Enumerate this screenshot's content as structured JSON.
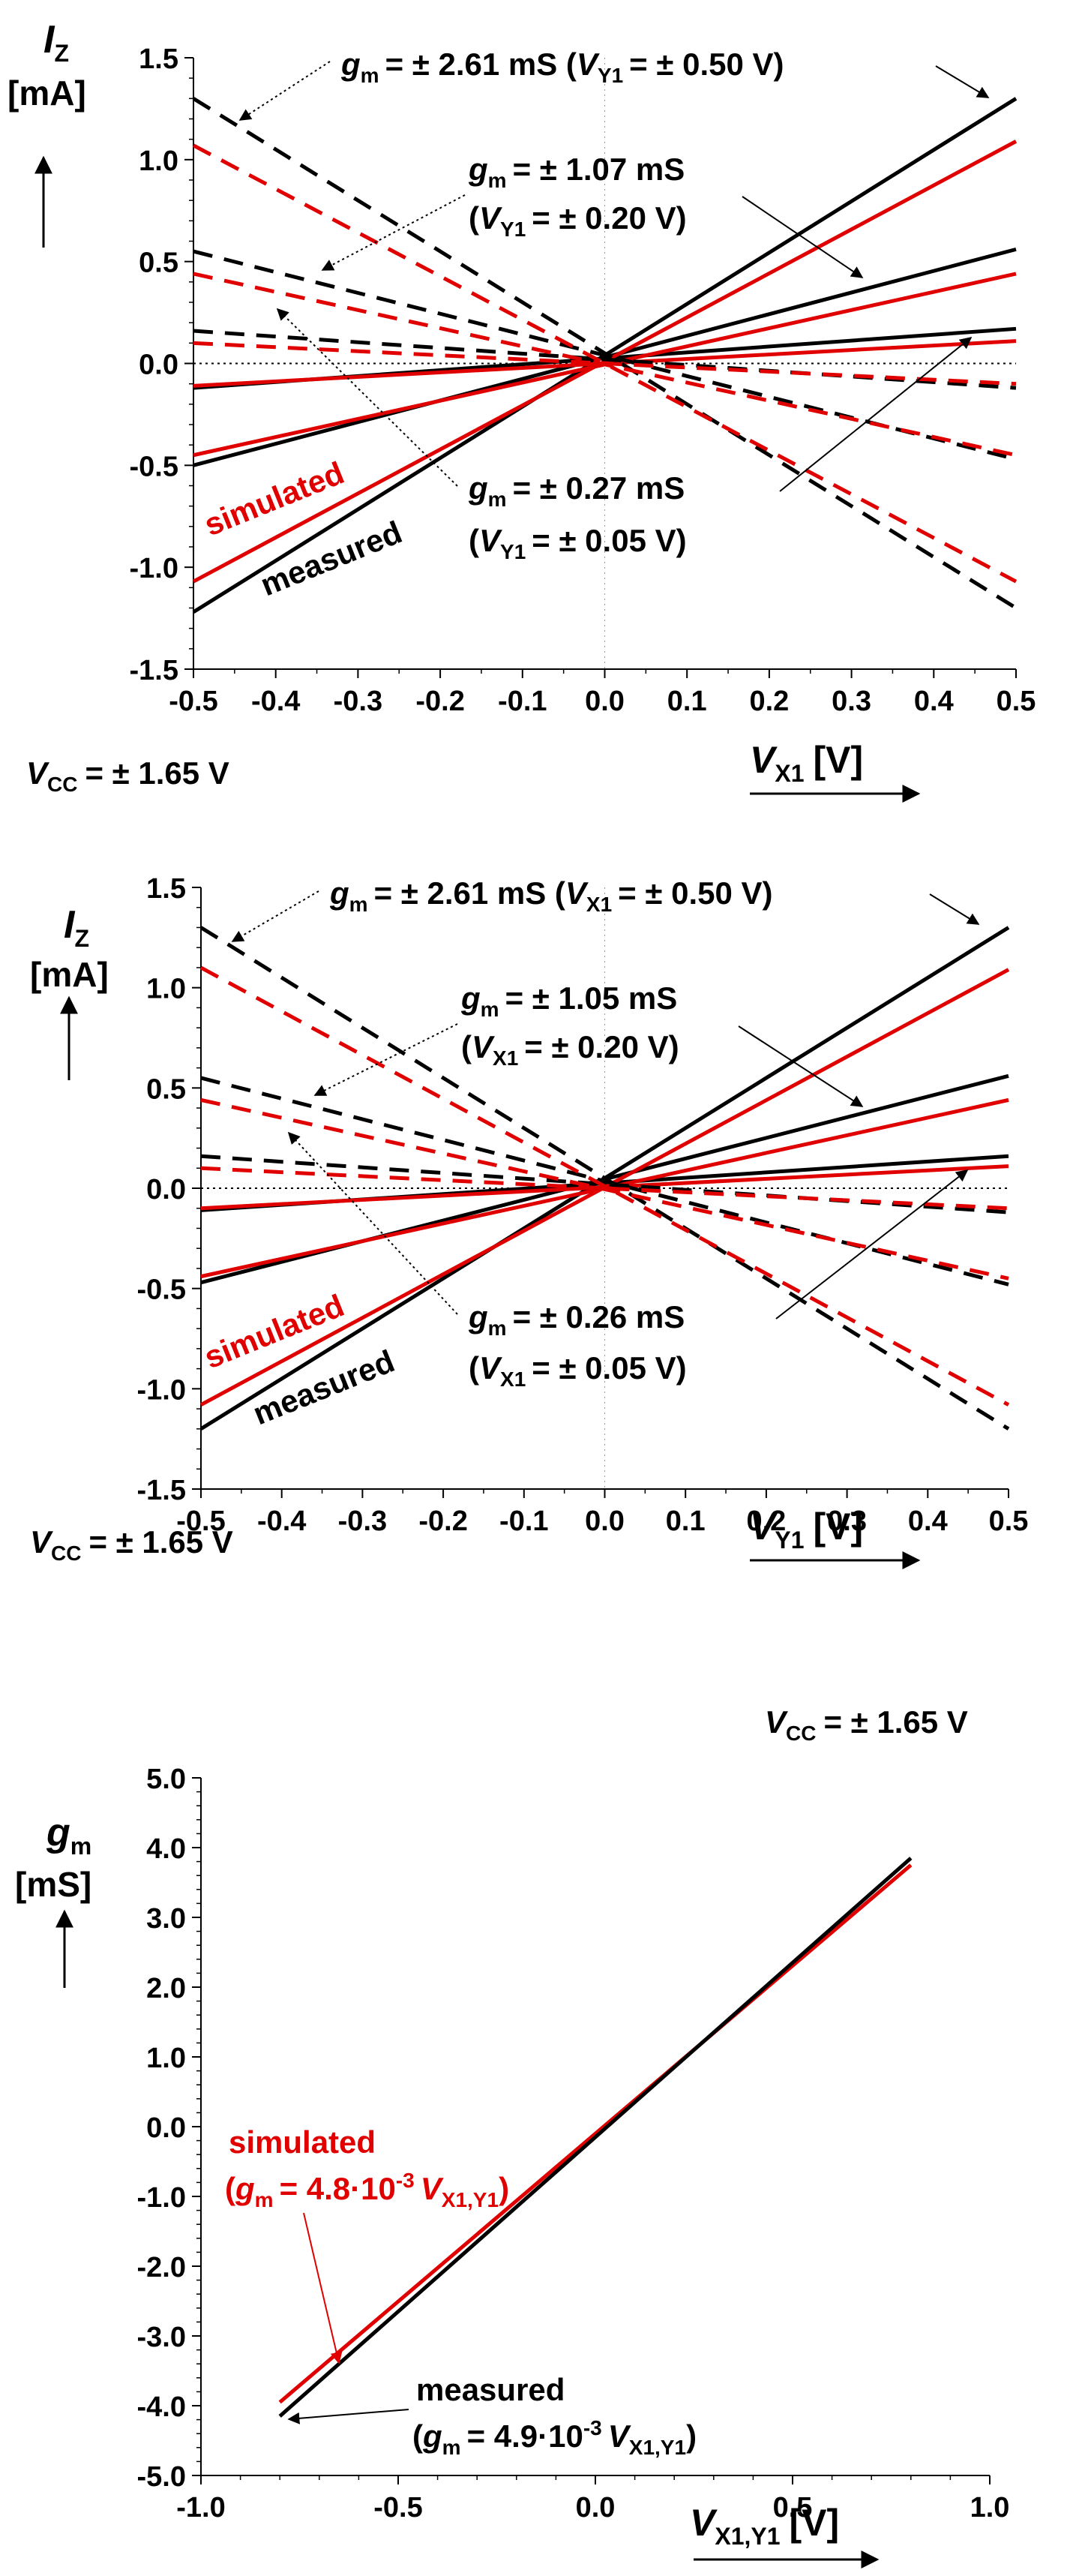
{
  "chart_data": [
    {
      "type": "line",
      "xlim": [
        -0.5,
        0.5
      ],
      "ylim": [
        -1.5,
        1.5
      ],
      "x_ticks": [
        "-0.5",
        "-0.4",
        "-0.3",
        "-0.2",
        "-0.1",
        "0.0",
        "0.1",
        "0.2",
        "0.3",
        "0.4",
        "0.5"
      ],
      "y_ticks": [
        "-1.5",
        "-1.0",
        "-0.5",
        "0.0",
        "0.5",
        "1.0",
        "1.5"
      ],
      "ylabel": {
        "sym": "I",
        "sub": "Z",
        "unit": "[mA]"
      },
      "xlabel": {
        "sym": "V",
        "sub": "X1",
        "unit": "[V]"
      },
      "vcc": {
        "sym": "V",
        "sub": "CC",
        "val": "= ± 1.65 V"
      },
      "legend": {
        "simulated": "simulated",
        "measured": "measured"
      },
      "annotations": [
        {
          "line1": "g",
          "line1_sub": "m",
          "line1_val": "= ± 2.61 mS (",
          "line1_sym2": "V",
          "line1_sub2": "Y1",
          "line1_end": "= ± 0.50 V)"
        },
        {
          "line1": "g",
          "line1_sub": "m",
          "line1_val": "= ± 1.07 mS",
          "line2_open": "(",
          "line2_sym": "V",
          "line2_sub": "Y1",
          "line2_end": "= ± 0.20 V)"
        },
        {
          "line1": "g",
          "line1_sub": "m",
          "line1_val": "= ± 0.27 mS",
          "line2_open": "(",
          "line2_sym": "V",
          "line2_sub": "Y1",
          "line2_end": "= ± 0.05 V)"
        }
      ],
      "series": [
        {
          "kind": "measured",
          "dash": false,
          "x": [
            -0.5,
            0.5
          ],
          "y": [
            -1.22,
            1.3
          ]
        },
        {
          "kind": "measured",
          "dash": false,
          "x": [
            -0.5,
            0.5
          ],
          "y": [
            -0.5,
            0.56
          ]
        },
        {
          "kind": "measured",
          "dash": false,
          "x": [
            -0.5,
            0.5
          ],
          "y": [
            -0.12,
            0.17
          ]
        },
        {
          "kind": "simulated",
          "dash": false,
          "x": [
            -0.5,
            0.5
          ],
          "y": [
            -1.07,
            1.09
          ]
        },
        {
          "kind": "simulated",
          "dash": false,
          "x": [
            -0.5,
            0.5
          ],
          "y": [
            -0.45,
            0.44
          ]
        },
        {
          "kind": "simulated",
          "dash": false,
          "x": [
            -0.5,
            0.5
          ],
          "y": [
            -0.11,
            0.11
          ]
        },
        {
          "kind": "measured",
          "dash": true,
          "x": [
            -0.5,
            0.5
          ],
          "y": [
            1.3,
            -1.2
          ]
        },
        {
          "kind": "measured",
          "dash": true,
          "x": [
            -0.5,
            0.5
          ],
          "y": [
            0.55,
            -0.47
          ]
        },
        {
          "kind": "measured",
          "dash": true,
          "x": [
            -0.5,
            0.5
          ],
          "y": [
            0.16,
            -0.12
          ]
        },
        {
          "kind": "simulated",
          "dash": true,
          "x": [
            -0.5,
            0.5
          ],
          "y": [
            1.07,
            -1.07
          ]
        },
        {
          "kind": "simulated",
          "dash": true,
          "x": [
            -0.5,
            0.5
          ],
          "y": [
            0.44,
            -0.45
          ]
        },
        {
          "kind": "simulated",
          "dash": true,
          "x": [
            -0.5,
            0.5
          ],
          "y": [
            0.1,
            -0.1
          ]
        }
      ]
    },
    {
      "type": "line",
      "xlim": [
        -0.5,
        0.5
      ],
      "ylim": [
        -1.5,
        1.5
      ],
      "x_ticks": [
        "-0.5",
        "-0.4",
        "-0.3",
        "-0.2",
        "-0.1",
        "0.0",
        "0.1",
        "0.2",
        "0.3",
        "0.4",
        "0.5"
      ],
      "y_ticks": [
        "-1.5",
        "-1.0",
        "-0.5",
        "0.0",
        "0.5",
        "1.0",
        "1.5"
      ],
      "ylabel": {
        "sym": "I",
        "sub": "Z",
        "unit": "[mA]"
      },
      "xlabel": {
        "sym": "V",
        "sub": "Y1",
        "unit": "[V]"
      },
      "vcc": {
        "sym": "V",
        "sub": "CC",
        "val": "= ± 1.65 V"
      },
      "legend": {
        "simulated": "simulated",
        "measured": "measured"
      },
      "annotations": [
        {
          "line1": "g",
          "line1_sub": "m",
          "line1_val": "= ± 2.61 mS (",
          "line1_sym2": "V",
          "line1_sub2": "X1",
          "line1_end": "= ± 0.50 V)"
        },
        {
          "line1": "g",
          "line1_sub": "m",
          "line1_val": "= ± 1.05 mS",
          "line2_open": "(",
          "line2_sym": "V",
          "line2_sub": "X1",
          "line2_end": "= ± 0.20 V)"
        },
        {
          "line1": "g",
          "line1_sub": "m",
          "line1_val": "= ± 0.26 mS",
          "line2_open": "(",
          "line2_sym": "V",
          "line2_sub": "X1",
          "line2_end": "= ± 0.05 V)"
        }
      ],
      "series": [
        {
          "kind": "measured",
          "dash": false,
          "x": [
            -0.5,
            0.5
          ],
          "y": [
            -1.2,
            1.3
          ]
        },
        {
          "kind": "measured",
          "dash": false,
          "x": [
            -0.5,
            0.5
          ],
          "y": [
            -0.47,
            0.56
          ]
        },
        {
          "kind": "measured",
          "dash": false,
          "x": [
            -0.5,
            0.5
          ],
          "y": [
            -0.11,
            0.16
          ]
        },
        {
          "kind": "simulated",
          "dash": false,
          "x": [
            -0.5,
            0.5
          ],
          "y": [
            -1.08,
            1.09
          ]
        },
        {
          "kind": "simulated",
          "dash": false,
          "x": [
            -0.5,
            0.5
          ],
          "y": [
            -0.44,
            0.44
          ]
        },
        {
          "kind": "simulated",
          "dash": false,
          "x": [
            -0.5,
            0.5
          ],
          "y": [
            -0.1,
            0.11
          ]
        },
        {
          "kind": "measured",
          "dash": true,
          "x": [
            -0.5,
            0.5
          ],
          "y": [
            1.3,
            -1.2
          ]
        },
        {
          "kind": "measured",
          "dash": true,
          "x": [
            -0.5,
            0.5
          ],
          "y": [
            0.55,
            -0.48
          ]
        },
        {
          "kind": "measured",
          "dash": true,
          "x": [
            -0.5,
            0.5
          ],
          "y": [
            0.16,
            -0.12
          ]
        },
        {
          "kind": "simulated",
          "dash": true,
          "x": [
            -0.5,
            0.5
          ],
          "y": [
            1.1,
            -1.08
          ]
        },
        {
          "kind": "simulated",
          "dash": true,
          "x": [
            -0.5,
            0.5
          ],
          "y": [
            0.44,
            -0.45
          ]
        },
        {
          "kind": "simulated",
          "dash": true,
          "x": [
            -0.5,
            0.5
          ],
          "y": [
            0.1,
            -0.1
          ]
        }
      ]
    },
    {
      "type": "line",
      "xlim": [
        -1.0,
        1.0
      ],
      "ylim": [
        -5.0,
        5.0
      ],
      "x_ticks": [
        "-1.0",
        "-0.5",
        "0.0",
        "0.5",
        "1.0"
      ],
      "y_ticks": [
        "-5.0",
        "-4.0",
        "-3.0",
        "-2.0",
        "-1.0",
        "0.0",
        "1.0",
        "2.0",
        "3.0",
        "4.0",
        "5.0"
      ],
      "ylabel": {
        "sym": "g",
        "sub": "m",
        "unit": "[mS]"
      },
      "xlabel": {
        "sym": "V",
        "sub": "X1,Y1",
        "unit": "[V]"
      },
      "vcc": {
        "sym": "V",
        "sub": "CC",
        "val": "= ± 1.65 V"
      },
      "legend_sim": {
        "label": "simulated",
        "open": "(",
        "sym": "g",
        "sub": "m",
        "eq": "= 4.8·10",
        "exp": "-3",
        "sym2": "V",
        "sub2": "X1,Y1",
        "close": ")"
      },
      "legend_meas": {
        "label": "measured",
        "open": "(",
        "sym": "g",
        "sub": "m",
        "eq": "= 4.9·10",
        "exp": "-3",
        "sym2": "V",
        "sub2": "X1,Y1",
        "close": ")"
      },
      "series": [
        {
          "kind": "simulated",
          "x": [
            -0.8,
            0.8
          ],
          "y": [
            -3.95,
            3.75
          ]
        },
        {
          "kind": "measured",
          "x": [
            -0.8,
            0.8
          ],
          "y": [
            -4.15,
            3.85
          ]
        }
      ]
    }
  ]
}
